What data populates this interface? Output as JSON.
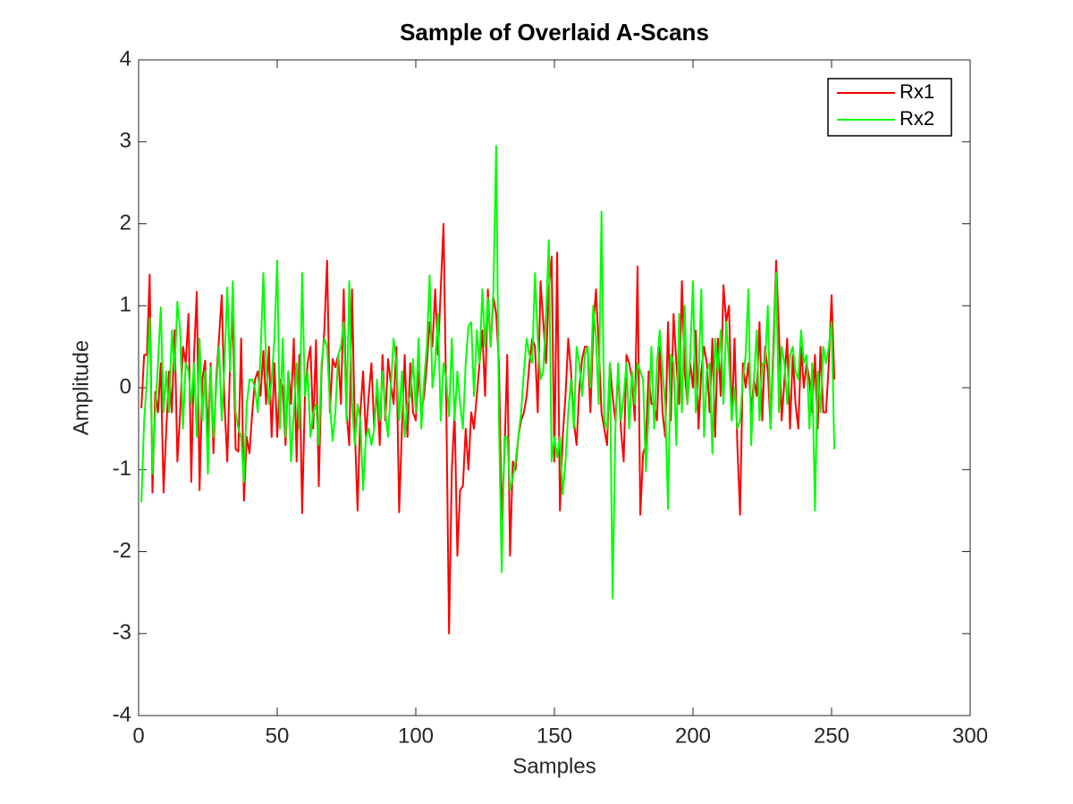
{
  "chart_data": {
    "type": "line",
    "title": "Sample of Overlaid A-Scans",
    "x_label": "Samples",
    "y_label": "Amplitude",
    "xlim": [
      0,
      300
    ],
    "xticks": [
      0,
      50,
      100,
      150,
      200,
      250,
      300
    ],
    "ylim": [
      -4,
      4
    ],
    "yticks": [
      -4,
      -3,
      -2,
      -1,
      0,
      1,
      2,
      3,
      4
    ],
    "legend": "upper right",
    "grid": false,
    "x": [
      1,
      2,
      3,
      4,
      5,
      6,
      7,
      8,
      9,
      10,
      11,
      12,
      13,
      14,
      15,
      16,
      17,
      18,
      19,
      20,
      21,
      22,
      23,
      24,
      25,
      26,
      27,
      28,
      29,
      30,
      31,
      32,
      33,
      34,
      35,
      36,
      37,
      38,
      39,
      40,
      41,
      42,
      43,
      44,
      45,
      46,
      47,
      48,
      49,
      50,
      51,
      52,
      53,
      54,
      55,
      56,
      57,
      58,
      59,
      60,
      61,
      62,
      63,
      64,
      65,
      66,
      67,
      68,
      69,
      70,
      71,
      72,
      73,
      74,
      75,
      76,
      77,
      78,
      79,
      80,
      81,
      82,
      83,
      84,
      85,
      86,
      87,
      88,
      89,
      90,
      91,
      92,
      93,
      94,
      95,
      96,
      97,
      98,
      99,
      100,
      101,
      102,
      103,
      104,
      105,
      106,
      107,
      108,
      109,
      110,
      111,
      112,
      113,
      114,
      115,
      116,
      117,
      118,
      119,
      120,
      121,
      122,
      123,
      124,
      125,
      126,
      127,
      128,
      129,
      130,
      131,
      132,
      133,
      134,
      135,
      136,
      137,
      138,
      139,
      140,
      141,
      142,
      143,
      144,
      145,
      146,
      147,
      148,
      149,
      150,
      151,
      152,
      153,
      154,
      155,
      156,
      157,
      158,
      159,
      160,
      161,
      162,
      163,
      164,
      165,
      166,
      167,
      168,
      169,
      170,
      171,
      172,
      173,
      174,
      175,
      176,
      177,
      178,
      179,
      180,
      181,
      182,
      183,
      184,
      185,
      186,
      187,
      188,
      189,
      190,
      191,
      192,
      193,
      194,
      195,
      196,
      197,
      198,
      199,
      200,
      201,
      202,
      203,
      204,
      205,
      206,
      207,
      208,
      209,
      210,
      211,
      212,
      213,
      214,
      215,
      216,
      217,
      218,
      219,
      220,
      221,
      222,
      223,
      224,
      225,
      226,
      227,
      228,
      229,
      230,
      231,
      232,
      233,
      234,
      235,
      236,
      237,
      238,
      239,
      240,
      241,
      242,
      243,
      244,
      245,
      246,
      247,
      248,
      249,
      250,
      251
    ],
    "series": [
      {
        "name": "Rx1",
        "color": "#ff0000",
        "values": [
          -0.25,
          0.4,
          0.4,
          1.38,
          -1.28,
          -0.05,
          -0.3,
          0.3,
          -1.28,
          -0.5,
          0.2,
          -0.3,
          0.7,
          -0.9,
          -0.3,
          0.5,
          0.3,
          0.9,
          -1.15,
          0.4,
          1.17,
          -1.25,
          0.1,
          0.33,
          -0.6,
          0.3,
          -0.8,
          0.1,
          0.6,
          1.13,
          -0.2,
          -0.9,
          0.3,
          0.9,
          -0.75,
          -0.78,
          0.6,
          -1.38,
          -0.6,
          -0.8,
          -0.3,
          0.1,
          0.2,
          -0.1,
          0.45,
          -0.2,
          0.5,
          -0.6,
          0.3,
          -0.6,
          0.1,
          0.0,
          -0.7,
          0.2,
          -0.2,
          0.6,
          -0.9,
          0.4,
          -1.53,
          -0.1,
          0.3,
          0.5,
          -0.5,
          0.58,
          -1.2,
          0.2,
          0.7,
          1.55,
          -0.3,
          0.35,
          0.25,
          0.4,
          -0.2,
          1.2,
          -0.3,
          -0.7,
          1.2,
          -0.5,
          -1.5,
          -0.3,
          0.2,
          -0.6,
          -0.1,
          0.3,
          -0.5,
          0.0,
          -0.7,
          0.4,
          -0.4,
          0.35,
          0.05,
          -0.2,
          0.5,
          -1.52,
          -0.5,
          0.4,
          -0.6,
          0.3,
          -0.3,
          -0.4,
          0.2,
          -0.3,
          -0.1,
          0.3,
          0.8,
          0.5,
          1.2,
          0.4,
          1.2,
          2.0,
          -0.2,
          -3.0,
          -1.0,
          -0.3,
          -2.05,
          -1.25,
          -1.2,
          -0.5,
          -1.0,
          -0.3,
          -0.5,
          -0.1,
          0.3,
          0.7,
          -0.1,
          1.2,
          0.5,
          1.1,
          0.9,
          0.3,
          -1.6,
          -0.8,
          0.4,
          -2.05,
          -0.9,
          -1.0,
          -0.6,
          -0.4,
          -0.3,
          -0.1,
          0.3,
          0.6,
          0.5,
          -0.3,
          1.3,
          0.8,
          0.3,
          1.2,
          1.6,
          -0.9,
          1.65,
          -1.5,
          -0.6,
          -0.1,
          0.6,
          0.2,
          -0.4,
          -0.7,
          0.0,
          0.35,
          0.5,
          0.5,
          -0.3,
          0.7,
          1.2,
          0.5,
          -0.3,
          -0.5,
          -0.7,
          0.3,
          -0.1,
          -0.4,
          0.2,
          -0.5,
          -0.9,
          0.4,
          0.3,
          0.1,
          -0.4,
          1.48,
          -1.55,
          -0.8,
          -0.7,
          0.2,
          -0.2,
          -0.2,
          -0.4,
          0.5,
          -0.3,
          -0.6,
          0.8,
          -0.4,
          0.9,
          0.3,
          -0.2,
          1.3,
          0.2,
          -0.2,
          0.3,
          0.0,
          0.7,
          -0.5,
          0.2,
          0.5,
          0.3,
          -0.3,
          0.6,
          -0.6,
          0.6,
          -0.1,
          1.25,
          0.8,
          1.0,
          -0.4,
          0.6,
          -0.7,
          -1.55,
          0.3,
          0.0,
          0.3,
          -0.3,
          0.1,
          -0.1,
          0.8,
          -0.4,
          0.5,
          0.2,
          -0.5,
          0.5,
          1.55,
          0.7,
          -0.4,
          0.1,
          0.6,
          -0.5,
          0.4,
          -0.2,
          -0.5,
          0.5,
          0.0,
          0.3,
          0.1,
          -0.3,
          0.4,
          -0.5,
          0.5,
          -0.3,
          -0.3,
          0.3,
          1.13,
          0.1
        ]
      },
      {
        "name": "Rx2",
        "color": "#00ff00",
        "values": [
          -1.4,
          -0.4,
          0.1,
          0.85,
          -1.05,
          -0.3,
          0.3,
          0.98,
          -0.3,
          0.2,
          -0.3,
          0.7,
          0.2,
          1.05,
          0.7,
          -0.5,
          0.3,
          0.2,
          -0.2,
          0.3,
          -0.6,
          0.6,
          -0.4,
          0.2,
          -1.05,
          0.25,
          -0.6,
          0.0,
          0.5,
          -0.4,
          0.3,
          1.22,
          0.2,
          1.3,
          -0.3,
          -0.5,
          -0.6,
          -1.15,
          -0.2,
          0.1,
          0.1,
          0.0,
          -0.3,
          0.4,
          1.4,
          0.3,
          -0.2,
          0.1,
          0.6,
          1.55,
          -0.5,
          0.6,
          -0.6,
          0.2,
          -0.9,
          -0.3,
          0.3,
          -0.5,
          1.4,
          -0.1,
          0.2,
          -0.6,
          -0.3,
          -0.2,
          -0.7,
          0.3,
          0.6,
          0.5,
          -0.2,
          -0.65,
          -0.3,
          0.4,
          0.5,
          0.8,
          -0.4,
          1.3,
          -0.2,
          -0.7,
          -0.2,
          -0.4,
          -1.25,
          -0.6,
          -0.5,
          -0.7,
          -0.5,
          0.1,
          -0.4,
          0.2,
          -0.3,
          -0.6,
          0.0,
          0.6,
          0.3,
          -0.4,
          0.2,
          -0.6,
          -0.2,
          -0.1,
          0.35,
          -0.3,
          0.6,
          -0.5,
          0.1,
          0.5,
          1.37,
          0.0,
          0.3,
          0.9,
          -0.4,
          0.3,
          0.1,
          -0.35,
          0.6,
          -0.4,
          0.2,
          -0.2,
          -0.5,
          0.3,
          0.75,
          0.8,
          -0.1,
          0.7,
          0.3,
          1.2,
          0.5,
          1.1,
          0.5,
          1.2,
          2.95,
          -0.4,
          -2.25,
          -0.6,
          -0.6,
          -1.25,
          -1.1,
          -0.9,
          -0.6,
          -0.3,
          0.2,
          0.6,
          0.4,
          0.3,
          1.4,
          0.6,
          0.1,
          0.2,
          0.9,
          1.8,
          -0.9,
          -0.6,
          -0.85,
          -0.6,
          -1.3,
          -0.9,
          -0.3,
          0.1,
          -0.5,
          0.5,
          0.3,
          -0.1,
          0.4,
          0.5,
          0.0,
          1.0,
          0.6,
          -0.2,
          2.15,
          -0.4,
          -0.5,
          0.3,
          -2.57,
          -0.5,
          0.3,
          -0.4,
          -0.1,
          0.3,
          -0.5,
          0.2,
          -0.2,
          0.3,
          0.2,
          0.1,
          -1.02,
          -0.3,
          0.5,
          -0.5,
          0.3,
          0.7,
          0.2,
          -0.2,
          -1.48,
          0.4,
          0.3,
          -0.7,
          0.9,
          -0.3,
          1.0,
          -0.2,
          0.4,
          1.3,
          -0.3,
          0.1,
          1.2,
          -0.6,
          0.2,
          0.3,
          -0.8,
          0.6,
          0.2,
          0.7,
          -0.2,
          0.8,
          0.3,
          -0.4,
          0.0,
          -0.5,
          -0.4,
          0.1,
          0.4,
          1.2,
          -0.7,
          0.1,
          0.7,
          -0.4,
          0.3,
          0.3,
          1.0,
          -0.5,
          0.3,
          1.4,
          -0.3,
          0.5,
          0.3,
          -0.2,
          0.4,
          0.5,
          0.2,
          0.1,
          0.7,
          0.3,
          0.4,
          -0.5,
          0.3,
          -1.5,
          0.2,
          -0.3,
          0.5,
          0.3,
          0.5,
          0.8,
          -0.75
        ]
      }
    ]
  }
}
